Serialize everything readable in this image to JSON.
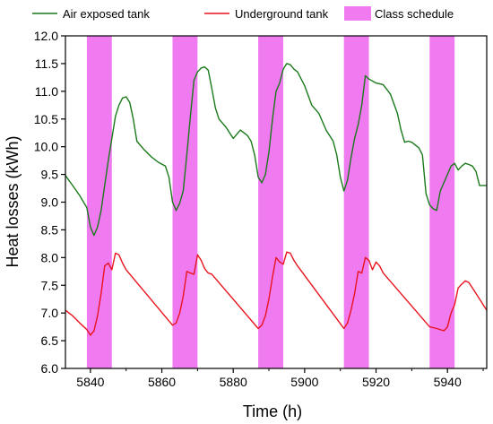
{
  "chart_data": {
    "type": "line",
    "xlabel": "Time (h)",
    "ylabel": "Heat losses (kWh)",
    "xlim": [
      5833,
      5951
    ],
    "ylim": [
      6.0,
      12.0
    ],
    "x_ticks": [
      5840,
      5860,
      5880,
      5900,
      5920,
      5940
    ],
    "y_ticks": [
      6.0,
      6.5,
      7.0,
      7.5,
      8.0,
      8.5,
      9.0,
      9.5,
      10.0,
      10.5,
      11.0,
      11.5,
      12.0
    ],
    "grid": false,
    "legend_position": "top",
    "band_series": {
      "name": "Class schedule",
      "color": "#f07af0",
      "ranges": [
        [
          5839,
          5846
        ],
        [
          5863,
          5870
        ],
        [
          5887,
          5894
        ],
        [
          5911,
          5918
        ],
        [
          5935,
          5942
        ]
      ]
    },
    "series": [
      {
        "name": "Air exposed tank",
        "color": "#1a7a1a",
        "points": [
          [
            5833,
            9.48
          ],
          [
            5835,
            9.3
          ],
          [
            5837,
            9.12
          ],
          [
            5839,
            8.9
          ],
          [
            5840,
            8.55
          ],
          [
            5841,
            8.4
          ],
          [
            5842,
            8.55
          ],
          [
            5843,
            8.85
          ],
          [
            5844,
            9.3
          ],
          [
            5845,
            9.75
          ],
          [
            5846,
            10.15
          ],
          [
            5847,
            10.55
          ],
          [
            5848,
            10.75
          ],
          [
            5849,
            10.88
          ],
          [
            5850,
            10.9
          ],
          [
            5851,
            10.8
          ],
          [
            5852,
            10.5
          ],
          [
            5853,
            10.1
          ],
          [
            5855,
            9.95
          ],
          [
            5857,
            9.82
          ],
          [
            5859,
            9.72
          ],
          [
            5861,
            9.65
          ],
          [
            5862,
            9.45
          ],
          [
            5863,
            9.0
          ],
          [
            5864,
            8.85
          ],
          [
            5865,
            8.98
          ],
          [
            5866,
            9.2
          ],
          [
            5867,
            9.85
          ],
          [
            5868,
            10.55
          ],
          [
            5869,
            11.2
          ],
          [
            5870,
            11.35
          ],
          [
            5871,
            11.42
          ],
          [
            5872,
            11.44
          ],
          [
            5873,
            11.38
          ],
          [
            5874,
            11.05
          ],
          [
            5875,
            10.7
          ],
          [
            5876,
            10.5
          ],
          [
            5878,
            10.35
          ],
          [
            5880,
            10.15
          ],
          [
            5882,
            10.3
          ],
          [
            5884,
            10.2
          ],
          [
            5885,
            10.1
          ],
          [
            5886,
            9.85
          ],
          [
            5887,
            9.45
          ],
          [
            5888,
            9.35
          ],
          [
            5889,
            9.5
          ],
          [
            5890,
            9.9
          ],
          [
            5891,
            10.5
          ],
          [
            5892,
            11.0
          ],
          [
            5893,
            11.15
          ],
          [
            5894,
            11.4
          ],
          [
            5895,
            11.5
          ],
          [
            5896,
            11.48
          ],
          [
            5897,
            11.4
          ],
          [
            5898,
            11.35
          ],
          [
            5900,
            11.1
          ],
          [
            5902,
            10.75
          ],
          [
            5904,
            10.6
          ],
          [
            5906,
            10.3
          ],
          [
            5908,
            10.1
          ],
          [
            5909,
            9.85
          ],
          [
            5910,
            9.45
          ],
          [
            5911,
            9.2
          ],
          [
            5912,
            9.4
          ],
          [
            5913,
            9.8
          ],
          [
            5914,
            10.15
          ],
          [
            5915,
            10.4
          ],
          [
            5916,
            10.75
          ],
          [
            5917,
            11.28
          ],
          [
            5918,
            11.22
          ],
          [
            5920,
            11.15
          ],
          [
            5922,
            11.12
          ],
          [
            5924,
            10.95
          ],
          [
            5926,
            10.6
          ],
          [
            5927,
            10.3
          ],
          [
            5928,
            10.08
          ],
          [
            5929,
            10.1
          ],
          [
            5930,
            10.08
          ],
          [
            5932,
            9.98
          ],
          [
            5933,
            9.85
          ],
          [
            5934,
            9.15
          ],
          [
            5935,
            8.95
          ],
          [
            5936,
            8.88
          ],
          [
            5937,
            8.85
          ],
          [
            5938,
            9.2
          ],
          [
            5939,
            9.35
          ],
          [
            5940,
            9.5
          ],
          [
            5941,
            9.65
          ],
          [
            5942,
            9.7
          ],
          [
            5943,
            9.58
          ],
          [
            5944,
            9.65
          ],
          [
            5945,
            9.7
          ],
          [
            5946,
            9.68
          ],
          [
            5947,
            9.65
          ],
          [
            5948,
            9.55
          ],
          [
            5949,
            9.3
          ],
          [
            5951,
            9.3
          ]
        ]
      },
      {
        "name": "Underground tank",
        "color": "#e8141e",
        "points": [
          [
            5833,
            7.05
          ],
          [
            5835,
            6.95
          ],
          [
            5837,
            6.82
          ],
          [
            5839,
            6.7
          ],
          [
            5840,
            6.6
          ],
          [
            5841,
            6.68
          ],
          [
            5842,
            6.95
          ],
          [
            5843,
            7.35
          ],
          [
            5844,
            7.85
          ],
          [
            5845,
            7.9
          ],
          [
            5846,
            7.78
          ],
          [
            5847,
            8.08
          ],
          [
            5848,
            8.05
          ],
          [
            5849,
            7.9
          ],
          [
            5850,
            7.78
          ],
          [
            5863,
            6.78
          ],
          [
            5864,
            6.82
          ],
          [
            5865,
            7.0
          ],
          [
            5866,
            7.3
          ],
          [
            5867,
            7.75
          ],
          [
            5868,
            7.72
          ],
          [
            5869,
            7.7
          ],
          [
            5870,
            8.05
          ],
          [
            5871,
            7.95
          ],
          [
            5872,
            7.8
          ],
          [
            5873,
            7.72
          ],
          [
            5874,
            7.7
          ],
          [
            5887,
            6.72
          ],
          [
            5888,
            6.78
          ],
          [
            5889,
            6.95
          ],
          [
            5890,
            7.25
          ],
          [
            5891,
            7.65
          ],
          [
            5892,
            8.0
          ],
          [
            5893,
            7.92
          ],
          [
            5894,
            7.88
          ],
          [
            5895,
            8.1
          ],
          [
            5896,
            8.08
          ],
          [
            5897,
            7.95
          ],
          [
            5898,
            7.85
          ],
          [
            5911,
            6.72
          ],
          [
            5912,
            6.82
          ],
          [
            5913,
            7.05
          ],
          [
            5914,
            7.35
          ],
          [
            5915,
            7.75
          ],
          [
            5916,
            7.72
          ],
          [
            5917,
            8.0
          ],
          [
            5918,
            7.95
          ],
          [
            5919,
            7.78
          ],
          [
            5920,
            7.92
          ],
          [
            5921,
            7.85
          ],
          [
            5922,
            7.72
          ],
          [
            5935,
            6.75
          ],
          [
            5937,
            6.72
          ],
          [
            5939,
            6.68
          ],
          [
            5940,
            6.75
          ],
          [
            5941,
            7.0
          ],
          [
            5942,
            7.15
          ],
          [
            5943,
            7.45
          ],
          [
            5944,
            7.52
          ],
          [
            5945,
            7.58
          ],
          [
            5946,
            7.55
          ],
          [
            5947,
            7.45
          ],
          [
            5948,
            7.35
          ],
          [
            5951,
            7.05
          ]
        ]
      }
    ]
  }
}
